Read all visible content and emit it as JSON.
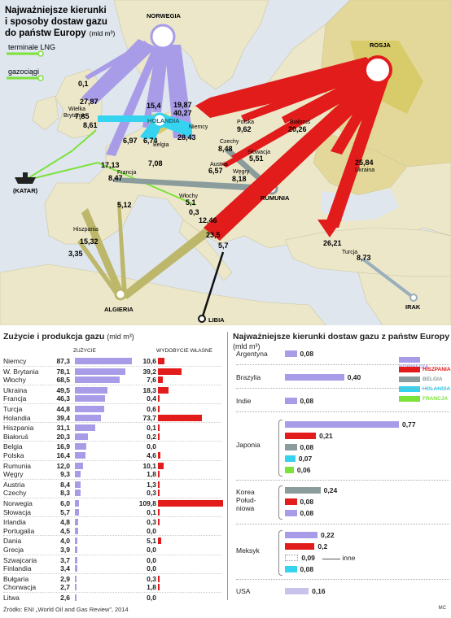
{
  "map": {
    "title_lines": [
      "Najważniejsze kierunki",
      "i sposoby dostaw gazu",
      "do państw Europy"
    ],
    "title_unit": "(mld m³)",
    "legend_lng": "terminale LNG",
    "legend_pipe": "gazociągi",
    "hubs": {
      "norway": "NORWEGIA",
      "russia": "ROSJA",
      "netherlands": "HOLANDIA",
      "qatar": "(KATAR)",
      "romania": "RUMUNIA",
      "algeria": "ALGIERIA",
      "libya": "LIBIA",
      "iraq": "IRAK"
    },
    "countries": {
      "germany": "Niemcy",
      "uk": "Wielka Brytania",
      "belgium": "Belgia",
      "france": "Francja",
      "poland": "Polska",
      "belarus": "Białoruś",
      "czech": "Czechy",
      "slovakia": "Słowacja",
      "austria": "Austria",
      "hungary": "Węgry",
      "ukraine": "Ukraina",
      "italy": "Włochy",
      "spain": "Hiszpania",
      "turkey": "Turcja"
    },
    "values": {
      "no_lng": "0,1",
      "no_uk": "27,87",
      "no_nl_small": "15,4",
      "no_de": "19,87",
      "no_fr": "17,13",
      "no_be": "6,97",
      "ru_de": "40,27",
      "uk_lng": "7,85",
      "uk_de": "8,61",
      "nl_be": "6,74",
      "nl_fr": "7,08",
      "nl_de": "28,43",
      "ru_pl": "9,62",
      "ru_by": "20,26",
      "ru_cz": "8,48",
      "ru_sk": "5,51",
      "ru_at": "6,57",
      "ru_hu": "8,18",
      "ru_ua": "25,84",
      "ru_fr": "8,47",
      "dz_it_a": "5,12",
      "dz_it": "5,1",
      "ly_it": "0,3",
      "dz_it_b": "12,46",
      "ru_it": "23,5",
      "ly_it2": "5,7",
      "ru_tr": "26,21",
      "ir_tr": "8,73",
      "dz_es": "15,32",
      "dz_es2": "3,35"
    }
  },
  "consumption": {
    "title": "Zużycie i produkcja gazu",
    "unit": "(mld m³)",
    "col_use": "ZUŻYCIE",
    "col_prod": "WYDOBYCIE WŁASNE",
    "rows": [
      {
        "country": "Niemcy",
        "use": "87,3",
        "prod": "10,6"
      },
      {
        "country": "W. Brytania",
        "use": "78,1",
        "prod": "39,2"
      },
      {
        "country": "Włochy",
        "use": "68,5",
        "prod": "7,6"
      },
      {
        "country": "Ukraina",
        "use": "49,5",
        "prod": "18,3"
      },
      {
        "country": "Francja",
        "use": "46,3",
        "prod": "0,4"
      },
      {
        "country": "Turcja",
        "use": "44,8",
        "prod": "0,6"
      },
      {
        "country": "Holandia",
        "use": "39,4",
        "prod": "73,7"
      },
      {
        "country": "Hiszpania",
        "use": "31,1",
        "prod": "0,1"
      },
      {
        "country": "Białoruś",
        "use": "20,3",
        "prod": "0,2"
      },
      {
        "country": "Belgia",
        "use": "16,9",
        "prod": "0,0"
      },
      {
        "country": "Polska",
        "use": "16,4",
        "prod": "4,6"
      },
      {
        "country": "Rumunia",
        "use": "12,0",
        "prod": "10,1"
      },
      {
        "country": "Węgry",
        "use": "9,3",
        "prod": "1,8"
      },
      {
        "country": "Austria",
        "use": "8,4",
        "prod": "1,3"
      },
      {
        "country": "Czechy",
        "use": "8,3",
        "prod": "0,3"
      },
      {
        "country": "Norwegia",
        "use": "6,0",
        "prod": "109,8"
      },
      {
        "country": "Słowacja",
        "use": "5,7",
        "prod": "0,1"
      },
      {
        "country": "Irlandia",
        "use": "4,8",
        "prod": "0,3"
      },
      {
        "country": "Portugalia",
        "use": "4,5",
        "prod": "0,0"
      },
      {
        "country": "Dania",
        "use": "4,0",
        "prod": "5,1"
      },
      {
        "country": "Grecja",
        "use": "3,9",
        "prod": "0,0"
      },
      {
        "country": "Szwajcaria",
        "use": "3,7",
        "prod": "0,0"
      },
      {
        "country": "Finlandia",
        "use": "3,4",
        "prod": "0,0"
      },
      {
        "country": "Bułgaria",
        "use": "2,9",
        "prod": "0,3"
      },
      {
        "country": "Chorwacja",
        "use": "2,7",
        "prod": "1,8"
      },
      {
        "country": "Litwa",
        "use": "2,6",
        "prod": "0,0"
      }
    ]
  },
  "imports": {
    "title": "Najważniejsze kierunki dostaw gazu z państw Europy",
    "unit": "(mld m³)",
    "legend": [
      {
        "label": "NORWEGIA",
        "color": "#a89ce8"
      },
      {
        "label": "HISZPANIA",
        "color": "#e21b1b"
      },
      {
        "label": "BELGIA",
        "color": "#8a9c9c"
      },
      {
        "label": "HOLANDIA",
        "color": "#35d3f0"
      },
      {
        "label": "FRANCJA",
        "color": "#7ce23a"
      }
    ],
    "countries": {
      "argentina": "Argentyna",
      "brazil": "Brazylia",
      "india": "Indie",
      "japan": "Japonia",
      "korea_1": "Korea",
      "korea_2": "Połud-",
      "korea_3": "niowa",
      "mexico": "Meksyk",
      "usa": "USA"
    },
    "other_label": "inne",
    "values": {
      "ar": "0,08",
      "br": "0,40",
      "in": "0,08",
      "jp_no": "0,77",
      "jp_es": "0,21",
      "jp_be": "0,08",
      "jp_nl": "0,07",
      "jp_fr": "0,06",
      "kr_be": "0,24",
      "kr_es": "0,08",
      "kr_no": "0,08",
      "mx_no": "0,22",
      "mx_es": "0,2",
      "mx_other": "0,09",
      "mx_nl": "0,08",
      "us": "0,16"
    }
  },
  "source": "Źródło: ENI „World Oil and Gas Review”, 2014",
  "signature": "MC",
  "chart_data": [
    {
      "type": "bar",
      "title": "Zużycie i produkcja gazu (mld m³)",
      "categories": [
        "Niemcy",
        "W. Brytania",
        "Włochy",
        "Ukraina",
        "Francja",
        "Turcja",
        "Holandia",
        "Hiszpania",
        "Białoruś",
        "Belgia",
        "Polska",
        "Rumunia",
        "Węgry",
        "Austria",
        "Czechy",
        "Norwegia",
        "Słowacja",
        "Irlandia",
        "Portugalia",
        "Dania",
        "Grecja",
        "Szwajcaria",
        "Finlandia",
        "Bułgaria",
        "Chorwacja",
        "Litwa"
      ],
      "series": [
        {
          "name": "ZUŻYCIE",
          "values": [
            87.3,
            78.1,
            68.5,
            49.5,
            46.3,
            44.8,
            39.4,
            31.1,
            20.3,
            16.9,
            16.4,
            12.0,
            9.3,
            8.4,
            8.3,
            6.0,
            5.7,
            4.8,
            4.5,
            4.0,
            3.9,
            3.7,
            3.4,
            2.9,
            2.7,
            2.6
          ]
        },
        {
          "name": "WYDOBYCIE WŁASNE",
          "values": [
            10.6,
            39.2,
            7.6,
            18.3,
            0.4,
            0.6,
            73.7,
            0.1,
            0.2,
            0.0,
            4.6,
            10.1,
            1.8,
            1.3,
            0.3,
            109.8,
            0.1,
            0.3,
            0.0,
            5.1,
            0.0,
            0.0,
            0.0,
            0.3,
            1.8,
            0.0
          ]
        }
      ]
    },
    {
      "type": "bar",
      "title": "Najważniejsze kierunki dostaw gazu z państw Europy (mld m³)",
      "categories": [
        "Argentyna",
        "Brazylia",
        "Indie",
        "Japonia",
        "Korea Południowa",
        "Meksyk",
        "USA"
      ],
      "series": [
        {
          "name": "NORWEGIA",
          "values": [
            0.08,
            0.4,
            0.08,
            0.77,
            0.08,
            0.22,
            0.16
          ]
        },
        {
          "name": "HISZPANIA",
          "values": [
            0,
            0,
            0,
            0.21,
            0.08,
            0.2,
            0
          ]
        },
        {
          "name": "BELGIA",
          "values": [
            0,
            0,
            0,
            0.08,
            0.24,
            0,
            0
          ]
        },
        {
          "name": "HOLANDIA",
          "values": [
            0,
            0,
            0,
            0.07,
            0,
            0.08,
            0
          ]
        },
        {
          "name": "FRANCJA",
          "values": [
            0,
            0,
            0,
            0.06,
            0,
            0,
            0
          ]
        }
      ]
    }
  ]
}
